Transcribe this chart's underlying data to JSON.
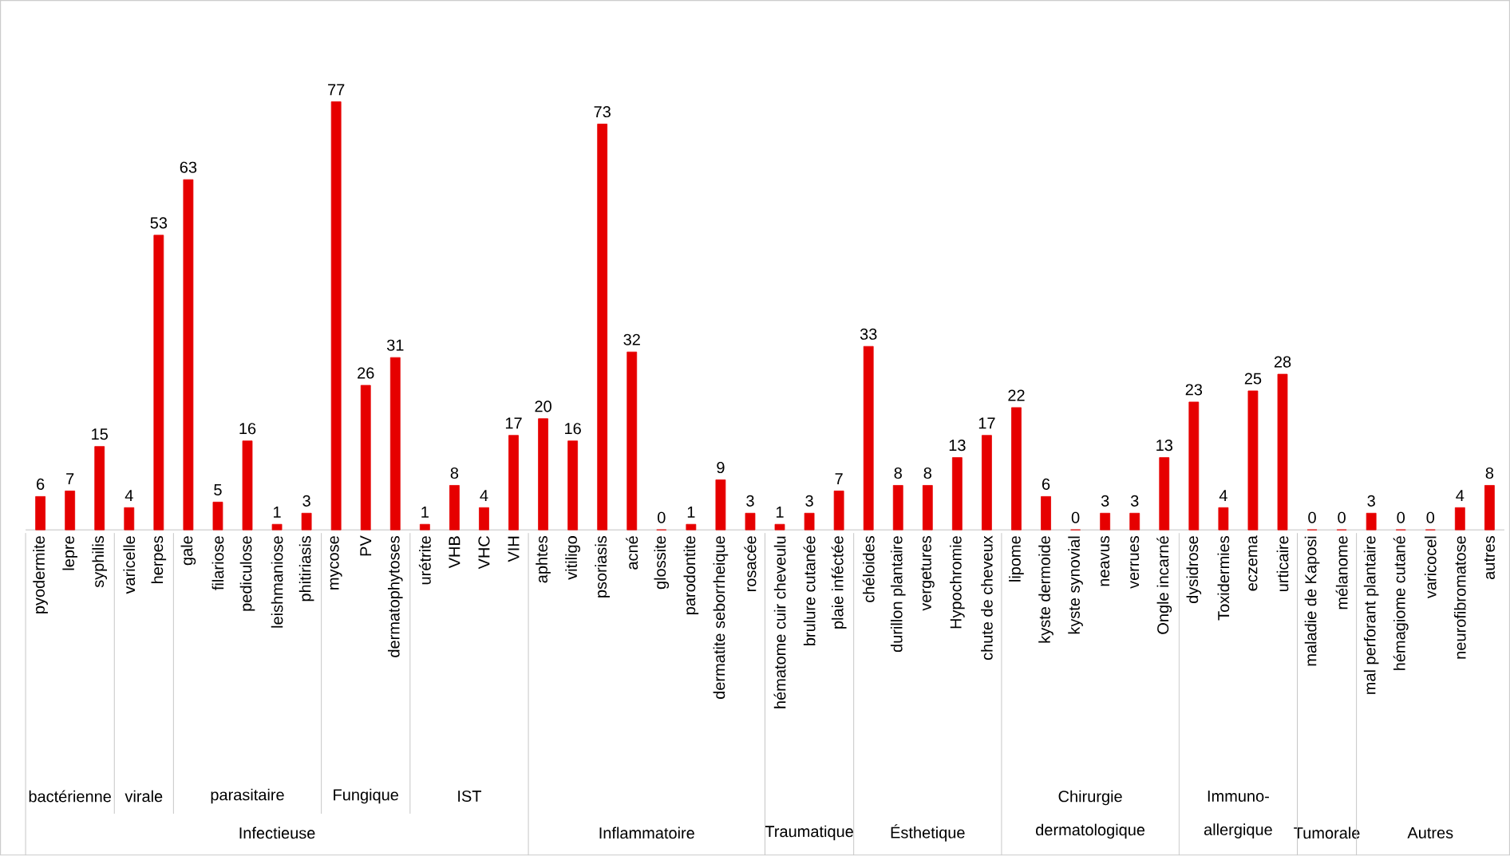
{
  "chart_data": {
    "type": "bar",
    "categories": [
      "pyodermite",
      "lepre",
      "syphilis",
      "varicelle",
      "herpes",
      "gale",
      "filariose",
      "pediculose",
      "leishmaniose",
      "phitiriasis",
      "mycose",
      "PV",
      "dermatophytoses",
      "urétrite",
      "VHB",
      "VHC",
      "VIH",
      "aphtes",
      "vitiligo",
      "psoriasis",
      "acné",
      "glossite",
      "parodontite",
      "dermatite seborrheique",
      "rosacée",
      "hématome cuir cheveulu",
      "brulure cutanée",
      "plaie inféctée",
      "chéloides",
      "durillon plantaire",
      "vergetures",
      "Hypochromie",
      "chute de cheveux",
      "lipome",
      "kyste dermoide",
      "kyste synovial",
      "neavus",
      "verrues",
      "Ongle incarné",
      "dysidrose",
      "Toxidermies",
      "eczema",
      "urticaire",
      "maladie de Kaposi",
      "mélanome",
      "mal perforant plantaire",
      "hémagiome cutané",
      "varicocel",
      "neurofibromatose",
      "autres"
    ],
    "values": [
      6,
      7,
      15,
      4,
      53,
      63,
      5,
      16,
      1,
      3,
      77,
      26,
      31,
      1,
      8,
      4,
      17,
      20,
      16,
      73,
      32,
      0,
      1,
      9,
      3,
      1,
      3,
      7,
      33,
      8,
      8,
      13,
      17,
      22,
      6,
      0,
      3,
      3,
      13,
      23,
      4,
      25,
      28,
      0,
      0,
      3,
      0,
      0,
      4,
      8
    ],
    "color": "#e60000",
    "data_labels": true,
    "annotations": [
      "bactérienne",
      "virale",
      "parasitaire",
      "Fungique",
      "IST",
      "Infectieuse",
      "Inflammatoire",
      "Traumatique",
      "Ésthetique",
      "Chirurgie dermatologique",
      "Immuno-allergique",
      "Tumorale",
      "Autres"
    ]
  }
}
